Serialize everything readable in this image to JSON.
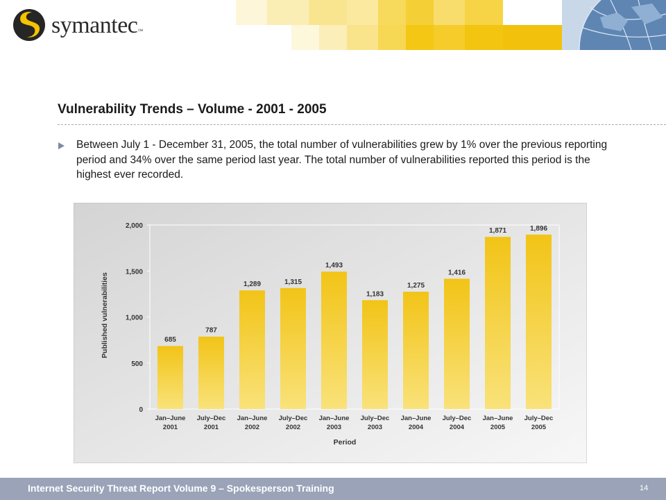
{
  "header": {
    "logo_text": "symantec",
    "logo_tm": "™"
  },
  "slide": {
    "title": "Vulnerability Trends – Volume - 2001 - 2005",
    "bullet": "Between July 1 - December 31, 2005, the total number of vulnerabilities grew by 1% over the previous reporting period and 34% over the same period last year.  The total number of vulnerabilities reported this period is the highest ever recorded."
  },
  "chart_data": {
    "type": "bar",
    "categories": [
      [
        "Jan–June",
        "2001"
      ],
      [
        "July–Dec",
        "2001"
      ],
      [
        "Jan–June",
        "2002"
      ],
      [
        "July–Dec",
        "2002"
      ],
      [
        "Jan–June",
        "2003"
      ],
      [
        "July–Dec",
        "2003"
      ],
      [
        "Jan–June",
        "2004"
      ],
      [
        "July–Dec",
        "2004"
      ],
      [
        "Jan–June",
        "2005"
      ],
      [
        "July–Dec",
        "2005"
      ]
    ],
    "values": [
      685,
      787,
      1289,
      1315,
      1493,
      1183,
      1275,
      1416,
      1871,
      1896
    ],
    "value_labels": [
      "685",
      "787",
      "1,289",
      "1,315",
      "1,493",
      "1,183",
      "1,275",
      "1,416",
      "1,871",
      "1,896"
    ],
    "yticks": [
      0,
      500,
      1000,
      1500,
      2000
    ],
    "ytick_labels": [
      "0",
      "500",
      "1,000",
      "1,500",
      "2,000"
    ],
    "ylim": [
      0,
      2000
    ],
    "xlabel": "Period",
    "ylabel": "Published vulnerabilities",
    "grid": false,
    "legend": "none",
    "bar_color_top": "#f2c417",
    "bar_color_bottom": "#f9e27a"
  },
  "footer": {
    "text": "Internet Security Threat Report Volume 9 – Spokesperson Training",
    "page_number": "14"
  }
}
